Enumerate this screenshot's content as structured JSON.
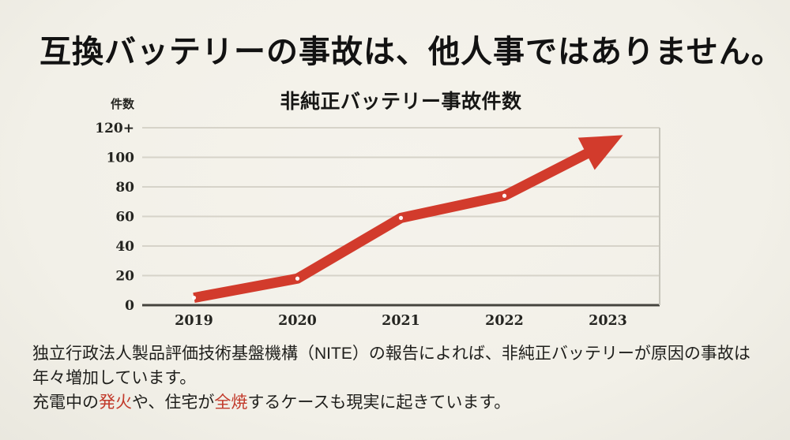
{
  "title": "互換バッテリーの事故は、他人事ではありません。",
  "chart_data": {
    "type": "line",
    "title": "非純正バッテリー事故件数",
    "ylabel": "件数",
    "xlabel": "",
    "categories": [
      "2019",
      "2020",
      "2021",
      "2022",
      "2023"
    ],
    "values": [
      5,
      18,
      59,
      74,
      null
    ],
    "arrow": {
      "note": "2023 depicted as thick rising arrow instead of a marker",
      "tip_value": 115
    },
    "yticks": [
      {
        "v": 0,
        "label": "0"
      },
      {
        "v": 20,
        "label": "20"
      },
      {
        "v": 40,
        "label": "40"
      },
      {
        "v": 60,
        "label": "60"
      },
      {
        "v": 80,
        "label": "80"
      },
      {
        "v": 100,
        "label": "100"
      },
      {
        "v": 120,
        "label": "120+"
      }
    ],
    "ylim": [
      0,
      120
    ],
    "grid": true,
    "legend": "none",
    "line_color": "#d23b2c",
    "marker_color": "#ffffff",
    "trend": "increasing"
  },
  "footer": {
    "line1": "独立行政法人製品評価技術基盤機構（NITE）の報告によれば、非純正バッテリーが原因の事故は",
    "line2": "年々増加しています。",
    "line3": [
      {
        "text": "充電中の",
        "highlight": false
      },
      {
        "text": "発火",
        "highlight": true
      },
      {
        "text": "や、住宅が",
        "highlight": false
      },
      {
        "text": "全焼",
        "highlight": true
      },
      {
        "text": "するケースも現実に起きています。",
        "highlight": false
      }
    ]
  },
  "colors": {
    "background": "#f2f0e8",
    "text": "#1d1d1a",
    "accent_red": "#c23a2b",
    "line_red": "#d23b2c",
    "grid": "#d6d3c9",
    "axis": "#45443e"
  }
}
